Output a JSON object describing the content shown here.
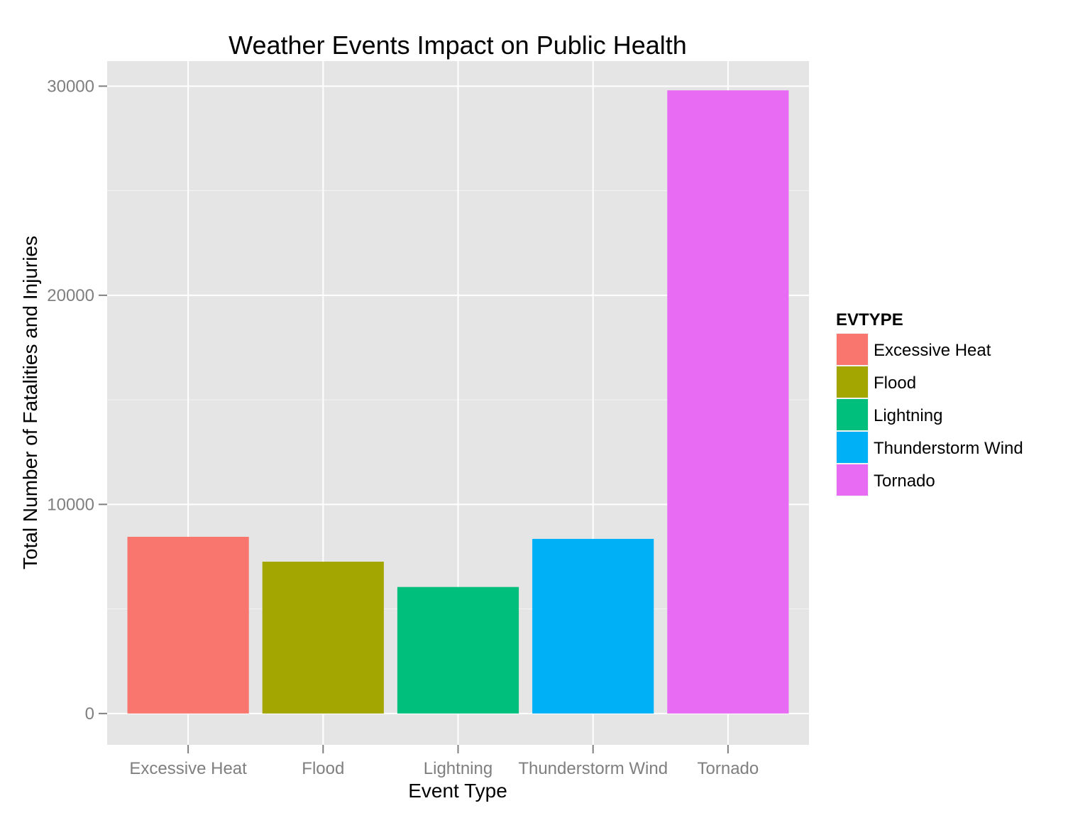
{
  "chart_data": {
    "type": "bar",
    "title": "Weather Events Impact on Public Health",
    "xlabel": "Event Type",
    "ylabel": "Total Number of Fatalities and Injuries",
    "categories": [
      "Excessive Heat",
      "Flood",
      "Lightning",
      "Thunderstorm Wind",
      "Tornado"
    ],
    "values": [
      8450,
      7260,
      6050,
      8350,
      29800
    ],
    "ylim": [
      -1500,
      31200
    ],
    "yticks": [
      0,
      10000,
      20000,
      30000
    ],
    "ytick_labels": [
      "0",
      "10000",
      "20000",
      "30000"
    ],
    "grid": true,
    "legend": {
      "title": "EVTYPE",
      "placement": "right",
      "entries": [
        "Excessive Heat",
        "Flood",
        "Lightning",
        "Thunderstorm Wind",
        "Tornado"
      ]
    },
    "colors": [
      "#F8766D",
      "#A3A500",
      "#00BF7D",
      "#00B0F6",
      "#E76BF3"
    ],
    "panel_background": "#E5E5E5",
    "grid_color": "#FFFFFF"
  }
}
